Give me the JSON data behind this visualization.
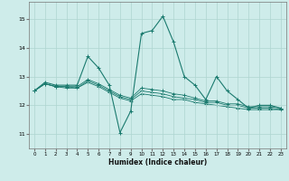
{
  "xlabel": "Humidex (Indice chaleur)",
  "background_color": "#ceecea",
  "grid_color": "#aed4d0",
  "line_color": "#1a7a6e",
  "xlim": [
    -0.5,
    23.5
  ],
  "ylim": [
    10.5,
    15.6
  ],
  "yticks": [
    11,
    12,
    13,
    14,
    15
  ],
  "xticks": [
    0,
    1,
    2,
    3,
    4,
    5,
    6,
    7,
    8,
    9,
    10,
    11,
    12,
    13,
    14,
    15,
    16,
    17,
    18,
    19,
    20,
    21,
    22,
    23
  ],
  "series": [
    {
      "x": [
        0,
        1,
        2,
        3,
        4,
        5,
        6,
        7,
        8,
        9,
        10,
        11,
        12,
        13,
        14,
        15,
        16,
        17,
        18,
        19,
        20,
        21,
        22,
        23
      ],
      "y": [
        12.5,
        12.8,
        12.7,
        12.7,
        12.7,
        13.7,
        13.3,
        12.7,
        11.05,
        11.8,
        14.5,
        14.6,
        15.1,
        14.2,
        13.0,
        12.7,
        12.2,
        13.0,
        12.5,
        12.2,
        11.9,
        12.0,
        12.0,
        11.9
      ]
    },
    {
      "x": [
        0,
        1,
        2,
        3,
        4,
        5,
        6,
        7,
        8,
        9,
        10,
        11,
        12,
        13,
        14,
        15,
        16,
        17,
        18,
        19,
        20,
        21,
        22,
        23
      ],
      "y": [
        12.5,
        12.75,
        12.65,
        12.65,
        12.65,
        12.9,
        12.75,
        12.55,
        12.35,
        12.25,
        12.6,
        12.55,
        12.5,
        12.4,
        12.35,
        12.25,
        12.15,
        12.15,
        12.05,
        12.05,
        11.95,
        11.95,
        11.95,
        11.9
      ]
    },
    {
      "x": [
        0,
        1,
        2,
        3,
        4,
        5,
        6,
        7,
        8,
        9,
        10,
        11,
        12,
        13,
        14,
        15,
        16,
        17,
        18,
        19,
        20,
        21,
        22,
        23
      ],
      "y": [
        12.5,
        12.75,
        12.65,
        12.65,
        12.6,
        12.85,
        12.7,
        12.5,
        12.3,
        12.2,
        12.5,
        12.45,
        12.4,
        12.3,
        12.25,
        12.2,
        12.1,
        12.1,
        12.0,
        12.0,
        11.9,
        11.9,
        11.9,
        11.85
      ]
    },
    {
      "x": [
        0,
        1,
        2,
        3,
        4,
        5,
        6,
        7,
        8,
        9,
        10,
        11,
        12,
        13,
        14,
        15,
        16,
        17,
        18,
        19,
        20,
        21,
        22,
        23
      ],
      "y": [
        12.5,
        12.75,
        12.65,
        12.6,
        12.6,
        12.8,
        12.65,
        12.45,
        12.25,
        12.15,
        12.4,
        12.35,
        12.3,
        12.2,
        12.2,
        12.1,
        12.05,
        12.0,
        11.95,
        11.9,
        11.85,
        11.85,
        11.85,
        11.85
      ]
    }
  ]
}
